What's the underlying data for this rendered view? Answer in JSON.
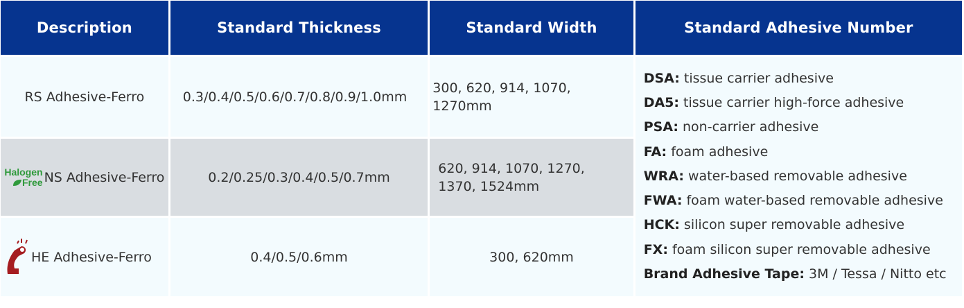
{
  "headers": [
    "Description",
    "Standard Thickness",
    "Standard Width",
    "Standard Adhesive Number"
  ],
  "rows": [
    {
      "description": "RS Adhesive-Ferro",
      "thickness": "0.3/0.4/0.5/0.6/0.7/0.8/0.9/1.0mm",
      "width": "300, 620, 914, 1070, 1270mm",
      "badge": ""
    },
    {
      "description": "NS Adhesive-Ferro",
      "thickness": "0.2/0.25/0.3/0.4/0.5/0.7mm",
      "width": "620, 914, 1070, 1270, 1370, 1524mm",
      "badge": "Halogen Free"
    },
    {
      "description": "HE Adhesive-Ferro",
      "thickness": "0.4/0.5/0.6mm",
      "width": "300, 620mm",
      "badge": "strong-arm-icon"
    }
  ],
  "badge_text": {
    "line1": "Halogen",
    "line2": "Free"
  },
  "adhesives": [
    {
      "code": "DSA:",
      "text": " tissue carrier adhesive"
    },
    {
      "code": "DA5:",
      "text": " tissue carrier high-force adhesive"
    },
    {
      "code": "PSA:",
      "text": " non-carrier adhesive"
    },
    {
      "code": "FA:",
      "text": " foam adhesive"
    },
    {
      "code": "WRA:",
      "text": " water-based removable adhesive"
    },
    {
      "code": "FWA:",
      "text": " foam water-based removable adhesive"
    },
    {
      "code": "HCK:",
      "text": " silicon super removable adhesive"
    },
    {
      "code": "FX:",
      "text": " foam silicon super removable adhesive"
    },
    {
      "code": "Brand Adhesive Tape:",
      "text": " 3M / Tessa / Nitto etc"
    }
  ],
  "colors": {
    "header": "#06348f",
    "row": "#f3fbfe",
    "row_alt": "#d9dde1",
    "halogen_green": "#2f9a3b",
    "arm_red": "#a51d21"
  }
}
